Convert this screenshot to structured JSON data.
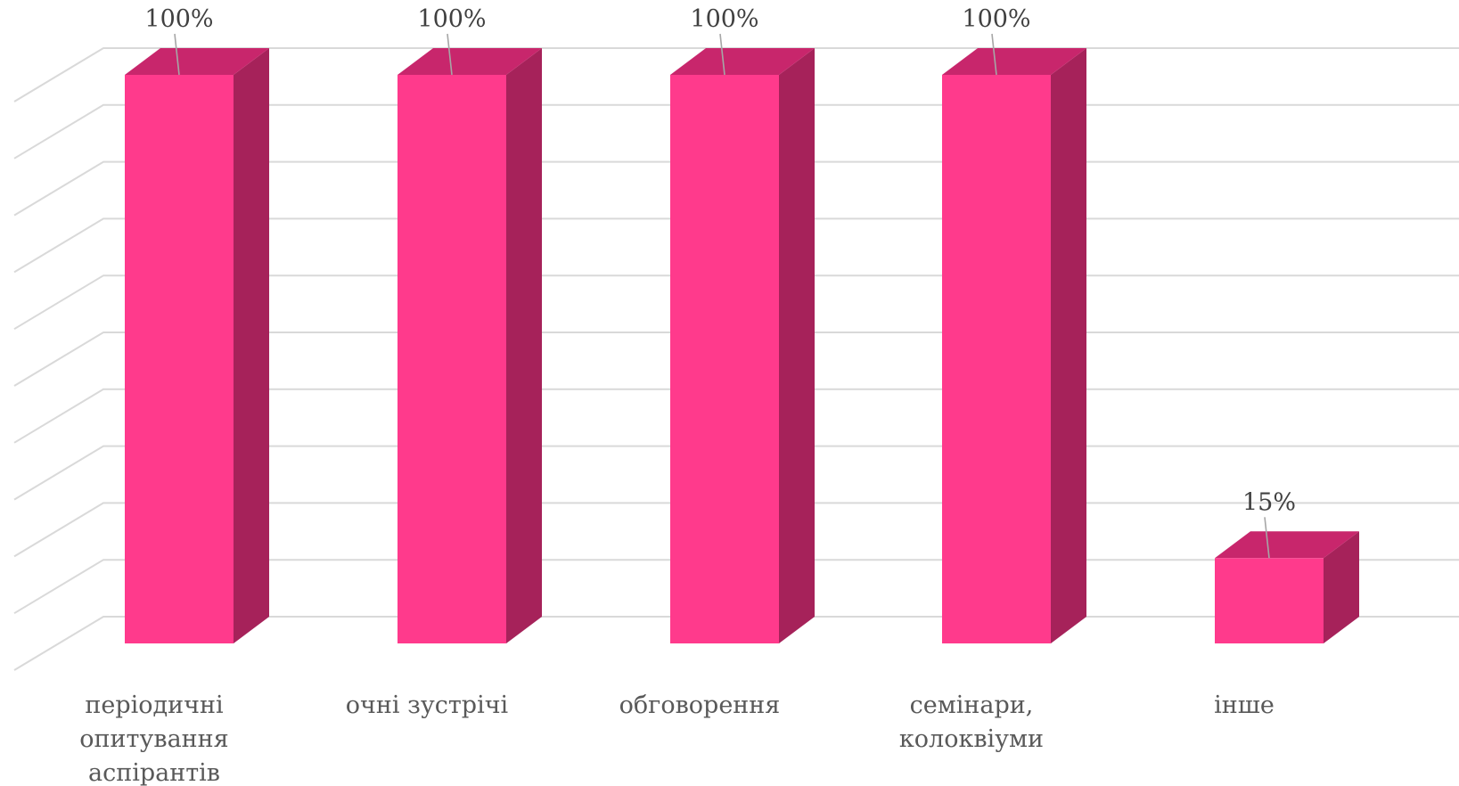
{
  "chart_data": {
    "type": "bar",
    "style": "3d-column",
    "categories": [
      [
        "періодичні",
        "опитування",
        "аспірантів"
      ],
      [
        "очні зустрічі"
      ],
      [
        "обговорення"
      ],
      [
        "семінари,",
        "колоквіуми"
      ],
      [
        "інше"
      ]
    ],
    "values": [
      100,
      100,
      100,
      100,
      15
    ],
    "data_labels": [
      "100%",
      "100%",
      "100%",
      "100%",
      "15%"
    ],
    "ylim": [
      0,
      100
    ],
    "grid": true,
    "legend": false,
    "colors": {
      "bar_front": "#ff3a8c",
      "bar_side": "#a6225a",
      "bar_top": "#c8266c",
      "grid": "#d9d9d9",
      "label": "#404040",
      "category_text": "#595959"
    }
  }
}
